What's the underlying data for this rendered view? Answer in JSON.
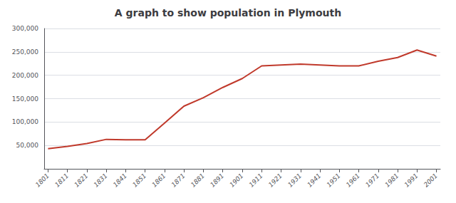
{
  "chart_data": {
    "type": "line",
    "title": "A graph to show population in Plymouth",
    "x": [
      1801,
      1811,
      1821,
      1831,
      1841,
      1851,
      1861,
      1871,
      1881,
      1891,
      1901,
      1911,
      1921,
      1931,
      1941,
      1951,
      1961,
      1971,
      1981,
      1991,
      2001
    ],
    "values": [
      43000,
      48000,
      54000,
      63000,
      62000,
      62000,
      98000,
      134000,
      152000,
      174000,
      193000,
      220000,
      222000,
      224000,
      222000,
      220000,
      220000,
      230000,
      238000,
      254000,
      241000
    ],
    "color": "#c0392b",
    "xlim": [
      1799,
      2003
    ],
    "xticks": [
      1801,
      1811,
      1821,
      1831,
      1841,
      1851,
      1861,
      1871,
      1881,
      1891,
      1901,
      1911,
      1921,
      1931,
      1941,
      1951,
      1961,
      1971,
      1981,
      1991,
      2001
    ],
    "ylim": [
      0,
      300000
    ],
    "yticks": [
      {
        "value": 50000,
        "label": "50,000"
      },
      {
        "value": 100000,
        "label": "100,000"
      },
      {
        "value": 150000,
        "label": "150,000"
      },
      {
        "value": 200000,
        "label": "200,000"
      },
      {
        "value": 250000,
        "label": "250,000"
      },
      {
        "value": 300000,
        "label": "300,000"
      }
    ],
    "grid": true
  }
}
